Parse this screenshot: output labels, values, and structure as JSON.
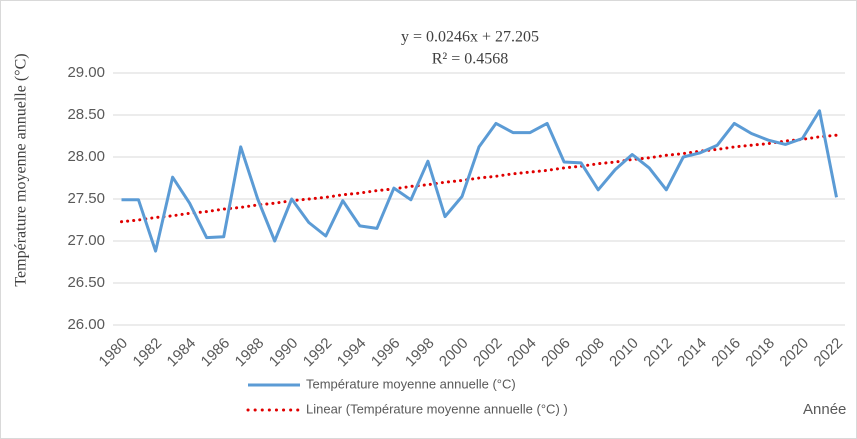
{
  "chart_data": {
    "type": "line",
    "annotations": [
      "y = 0.0246x + 27.205",
      "R² = 0.4568"
    ],
    "y_label": "Température moyenne annuelle (°C)",
    "x_label": "Année",
    "categories": [
      "1980",
      null,
      "1982",
      null,
      "1984",
      null,
      "1986",
      null,
      "1988",
      null,
      "1990",
      null,
      "1992",
      null,
      "1994",
      null,
      "1996",
      null,
      "1998",
      null,
      "2000",
      null,
      "2002",
      null,
      "2004",
      null,
      "2006",
      null,
      "2008",
      null,
      "2010",
      null,
      "2012",
      null,
      "2014",
      null,
      "2016",
      null,
      "2018",
      null,
      "2020",
      null,
      "2022"
    ],
    "series": [
      {
        "name": "Température moyenne annuelle (°C)",
        "color": "#5b9bd5",
        "style": "solid",
        "values": [
          27.49,
          27.49,
          26.88,
          27.76,
          27.45,
          27.04,
          27.05,
          28.12,
          27.5,
          27.0,
          27.5,
          27.22,
          27.06,
          27.48,
          27.18,
          27.15,
          27.63,
          27.49,
          27.95,
          27.29,
          27.53,
          28.12,
          28.4,
          28.29,
          28.29,
          28.4,
          27.94,
          27.93,
          27.61,
          27.85,
          28.03,
          27.87,
          27.61,
          28.0,
          28.05,
          28.14,
          28.4,
          28.28,
          28.2,
          28.15,
          28.22,
          28.55,
          27.52
        ]
      },
      {
        "name": "Linear (Température moyenne annuelle (°C) )",
        "color": "#e00000",
        "style": "dotted",
        "values": [
          27.23,
          27.25,
          27.28,
          27.3,
          27.33,
          27.35,
          27.38,
          27.4,
          27.43,
          27.45,
          27.48,
          27.5,
          27.52,
          27.55,
          27.57,
          27.6,
          27.62,
          27.65,
          27.67,
          27.7,
          27.72,
          27.75,
          27.77,
          27.8,
          27.82,
          27.84,
          27.87,
          27.89,
          27.92,
          27.94,
          27.97,
          27.99,
          28.02,
          28.04,
          28.07,
          28.09,
          28.12,
          28.14,
          28.16,
          28.19,
          28.21,
          28.24,
          28.26
        ]
      }
    ],
    "ylim": [
      26,
      29
    ],
    "yticks": [
      {
        "value": 26,
        "label": "26.00"
      },
      {
        "value": 26.5,
        "label": "26.50"
      },
      {
        "value": 27,
        "label": "27.00"
      },
      {
        "value": 27.5,
        "label": "27.50"
      },
      {
        "value": 28,
        "label": "28.00"
      },
      {
        "value": 28.5,
        "label": "28.50"
      },
      {
        "value": 29,
        "label": "29.00"
      }
    ],
    "grid": true
  }
}
